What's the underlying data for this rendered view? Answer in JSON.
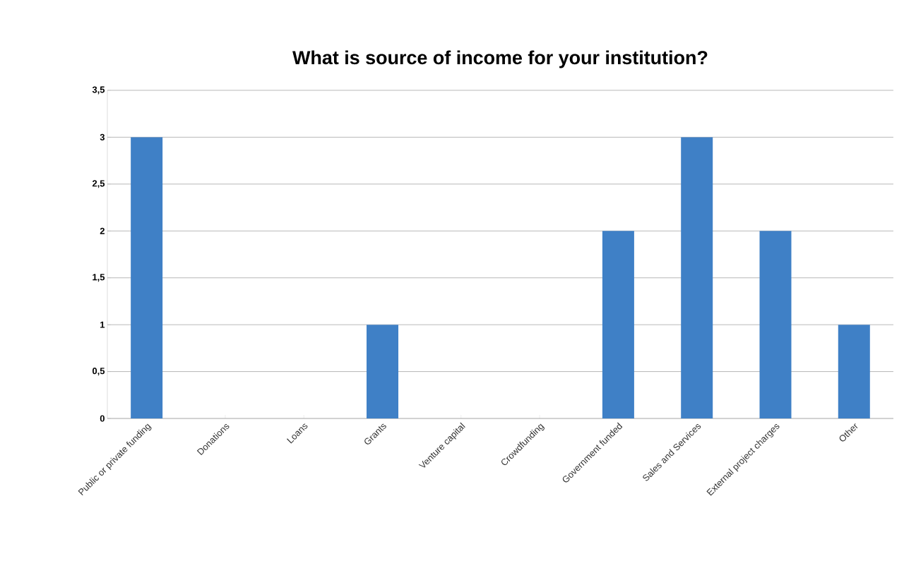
{
  "chart_data": {
    "type": "bar",
    "title": "What is source of income for your institution?",
    "categories": [
      "Public or private funding",
      "Donations",
      "Loans",
      "Grants",
      "Venture capital",
      "Crowdfunding",
      "Government funded",
      "Sales and Services",
      "External project charges",
      "Other"
    ],
    "values": [
      3,
      0,
      0,
      1,
      0,
      0,
      2,
      3,
      2,
      1
    ],
    "color": "#3f80c6",
    "ylim": [
      0,
      3.5
    ],
    "yticks": [
      0,
      {
        "value": 0.5,
        "label": "0,5"
      },
      1,
      {
        "value": 1.5,
        "label": "1,5"
      },
      2,
      {
        "value": 2.5,
        "label": "2,5"
      },
      3,
      {
        "value": 3.5,
        "label": "3,5"
      }
    ],
    "grid": "y"
  }
}
